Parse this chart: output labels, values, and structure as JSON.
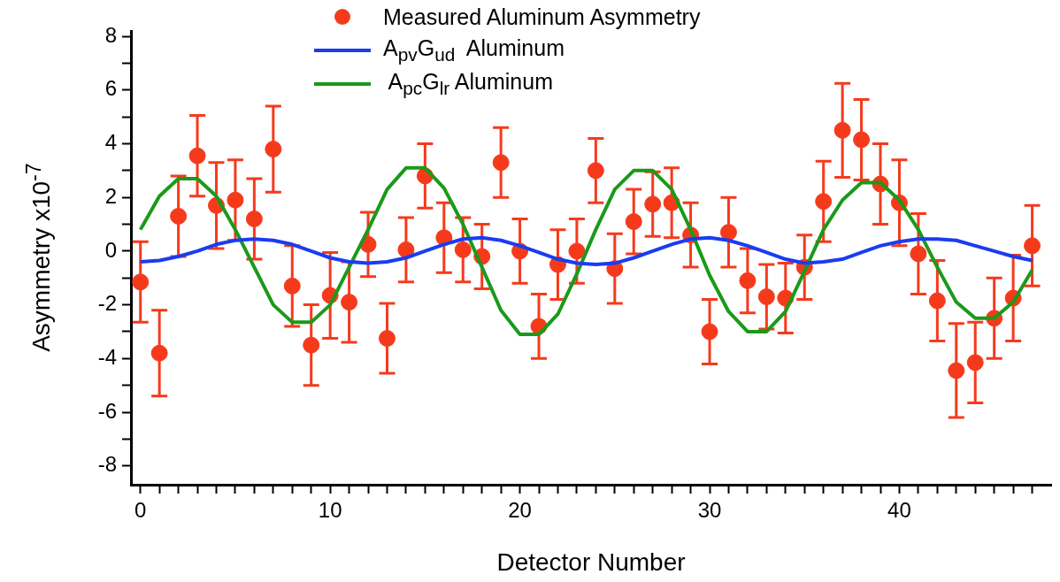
{
  "chart_data": {
    "type": "scatter",
    "xlabel": "Detector Number",
    "ylabel": "Asymmetry x10$^{-7}$",
    "legend": "top",
    "xlim": [
      -0.5,
      48
    ],
    "ylim": [
      -8.7,
      8.2
    ],
    "xticks": [
      0,
      {
        "value": 1,
        "label": null
      },
      {
        "value": 2,
        "label": null
      },
      {
        "value": 3,
        "label": null
      },
      {
        "value": 4,
        "label": null
      },
      {
        "value": 5,
        "label": null
      },
      {
        "value": 6,
        "label": null
      },
      {
        "value": 7,
        "label": null
      },
      {
        "value": 8,
        "label": null
      },
      {
        "value": 9,
        "label": null
      },
      10,
      {
        "value": 11,
        "label": null
      },
      {
        "value": 12,
        "label": null
      },
      {
        "value": 13,
        "label": null
      },
      {
        "value": 14,
        "label": null
      },
      {
        "value": 15,
        "label": null
      },
      {
        "value": 16,
        "label": null
      },
      {
        "value": 17,
        "label": null
      },
      {
        "value": 18,
        "label": null
      },
      {
        "value": 19,
        "label": null
      },
      20,
      {
        "value": 21,
        "label": null
      },
      {
        "value": 22,
        "label": null
      },
      {
        "value": 23,
        "label": null
      },
      {
        "value": 24,
        "label": null
      },
      {
        "value": 25,
        "label": null
      },
      {
        "value": 26,
        "label": null
      },
      {
        "value": 27,
        "label": null
      },
      {
        "value": 28,
        "label": null
      },
      {
        "value": 29,
        "label": null
      },
      30,
      {
        "value": 31,
        "label": null
      },
      {
        "value": 32,
        "label": null
      },
      {
        "value": 33,
        "label": null
      },
      {
        "value": 34,
        "label": null
      },
      {
        "value": 35,
        "label": null
      },
      {
        "value": 36,
        "label": null
      },
      {
        "value": 37,
        "label": null
      },
      {
        "value": 38,
        "label": null
      },
      {
        "value": 39,
        "label": null
      },
      40,
      {
        "value": 41,
        "label": null
      },
      {
        "value": 42,
        "label": null
      },
      {
        "value": 43,
        "label": null
      },
      {
        "value": 44,
        "label": null
      },
      {
        "value": 45,
        "label": null
      },
      {
        "value": 46,
        "label": null
      },
      {
        "value": 47,
        "label": null
      }
    ],
    "yticks": [
      -8,
      {
        "value": -7,
        "label": null
      },
      -6,
      {
        "value": -5,
        "label": null
      },
      -4,
      {
        "value": -3,
        "label": null
      },
      -2,
      {
        "value": -1,
        "label": null
      },
      0,
      {
        "value": 1,
        "label": null
      },
      2,
      {
        "value": 3,
        "label": null
      },
      4,
      {
        "value": 5,
        "label": null
      },
      6,
      {
        "value": 7,
        "label": null
      },
      8
    ],
    "x": [
      0,
      1,
      2,
      3,
      4,
      5,
      6,
      7,
      8,
      9,
      10,
      11,
      12,
      13,
      14,
      15,
      16,
      17,
      18,
      19,
      20,
      21,
      22,
      23,
      24,
      25,
      26,
      27,
      28,
      29,
      30,
      31,
      32,
      33,
      34,
      35,
      36,
      37,
      38,
      39,
      40,
      41,
      42,
      43,
      44,
      45,
      46,
      47
    ],
    "series": [
      {
        "name": "Measured Aluminum Asymmetry",
        "marker": "circle",
        "color": "#f53a1c",
        "values": [
          -1.15,
          -3.8,
          1.3,
          3.55,
          1.7,
          1.9,
          1.2,
          3.8,
          -1.3,
          -3.5,
          -1.65,
          -1.9,
          0.25,
          -3.25,
          0.05,
          2.8,
          0.5,
          0.05,
          -0.2,
          3.3,
          0,
          -2.8,
          -0.5,
          0,
          3.0,
          -0.65,
          1.1,
          1.75,
          1.8,
          0.6,
          -3.0,
          0.7,
          -1.1,
          -1.7,
          -1.75,
          -0.6,
          1.85,
          4.5,
          4.15,
          2.5,
          1.8,
          -0.1,
          -1.85,
          -4.45,
          -4.15,
          -2.5,
          -1.75,
          0.2
        ],
        "errors": [
          1.5,
          1.6,
          1.5,
          1.5,
          1.6,
          1.5,
          1.5,
          1.6,
          1.5,
          1.5,
          1.6,
          1.5,
          1.2,
          1.3,
          1.2,
          1.2,
          1.3,
          1.2,
          1.2,
          1.3,
          1.2,
          1.2,
          1.3,
          1.2,
          1.2,
          1.3,
          1.2,
          1.2,
          1.3,
          1.2,
          1.2,
          1.3,
          1.2,
          1.2,
          1.3,
          1.2,
          1.5,
          1.75,
          1.5,
          1.5,
          1.6,
          1.5,
          1.5,
          1.75,
          1.5,
          1.5,
          1.6,
          1.5
        ]
      },
      {
        "name": "A$_{pv}$G$_{ud}$  Aluminum",
        "type": "line",
        "marker": "none",
        "line_style": "solid",
        "color": "#1a3cf0",
        "values": [
          -0.4,
          -0.35,
          -0.2,
          0,
          0.25,
          0.4,
          0.45,
          0.4,
          0.25,
          0,
          -0.25,
          -0.4,
          -0.45,
          -0.4,
          -0.25,
          0,
          0.25,
          0.45,
          0.5,
          0.4,
          0.2,
          -0.05,
          -0.3,
          -0.45,
          -0.5,
          -0.45,
          -0.25,
          0,
          0.25,
          0.45,
          0.5,
          0.4,
          0.2,
          -0.05,
          -0.3,
          -0.45,
          -0.4,
          -0.3,
          -0.05,
          0.2,
          0.35,
          0.45,
          0.45,
          0.4,
          0.2,
          0,
          -0.2,
          -0.35
        ]
      },
      {
        "name": " A$_{pc}$G$_{lr}$ Aluminum",
        "type": "line",
        "marker": "none",
        "line_style": "solid",
        "color": "#1a9a1a",
        "values": [
          0.8,
          2.05,
          2.7,
          2.7,
          2.05,
          0.8,
          -0.6,
          -2.0,
          -2.65,
          -2.65,
          -2.0,
          -0.6,
          0.8,
          2.3,
          3.1,
          3.1,
          2.35,
          1.0,
          -0.6,
          -2.2,
          -3.1,
          -3.1,
          -2.35,
          -0.85,
          0.8,
          2.3,
          3.0,
          3.0,
          2.3,
          0.8,
          -0.9,
          -2.25,
          -3.0,
          -3.0,
          -2.25,
          -0.75,
          0.8,
          1.9,
          2.55,
          2.55,
          1.9,
          0.8,
          -0.6,
          -1.9,
          -2.5,
          -2.5,
          -1.9,
          -0.7
        ]
      }
    ]
  }
}
